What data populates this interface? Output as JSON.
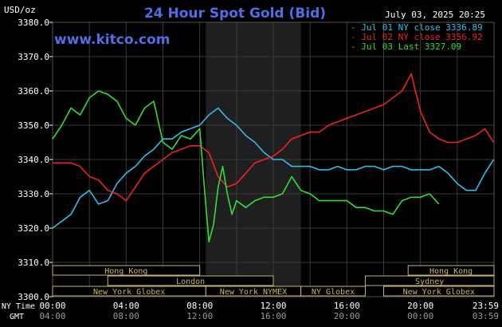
{
  "chart_data": {
    "type": "line",
    "title": "24 Hour Spot Gold (Bid)",
    "brand": "www.kitco.com",
    "date_label": "July 03, 2025 20:25",
    "ylabel": "USD/oz",
    "ylim": [
      3300,
      3380
    ],
    "yticks": [
      3300,
      3310,
      3320,
      3330,
      3340,
      3350,
      3360,
      3370,
      3380
    ],
    "ytick_labels": [
      "3300.0",
      "3310.0",
      "3320.0",
      "3330.0",
      "3340.0",
      "3350.0",
      "3360.0",
      "3370.0",
      "3380.0"
    ],
    "x_axis_caption_top": "NY Time",
    "x_axis_caption_bottom": "GMT",
    "xticks_ny": [
      "00:00",
      "04:00",
      "08:00",
      "12:00",
      "16:00",
      "20:00",
      "23:59"
    ],
    "xticks_gmt": [
      "04:00",
      "08:00",
      "12:00",
      "16:00",
      "20:00",
      "00:00",
      "03:59"
    ],
    "legend_position": "top-right",
    "grid": true,
    "series": [
      {
        "name": "Jul 01 NY close 3336.89",
        "color": "#33bbee",
        "x": [
          0,
          0.5,
          1,
          1.5,
          2,
          2.5,
          3,
          3.5,
          4,
          4.5,
          5,
          5.5,
          6,
          6.5,
          7,
          7.5,
          8,
          8.5,
          9,
          9.5,
          10,
          10.5,
          11,
          11.5,
          12,
          12.5,
          13,
          13.5,
          14,
          14.5,
          15,
          15.5,
          16,
          16.5,
          17,
          17.5,
          18,
          18.5,
          19,
          19.5,
          20,
          20.5,
          21,
          21.5,
          22,
          22.5,
          23,
          23.5,
          23.98
        ],
        "values": [
          3320,
          3322,
          3324,
          3329,
          3331,
          3327,
          3328,
          3333,
          3336,
          3338,
          3341,
          3343,
          3346,
          3346,
          3348,
          3349,
          3350,
          3353,
          3355,
          3352,
          3350,
          3347,
          3345,
          3342,
          3340,
          3340,
          3338,
          3338,
          3338,
          3337,
          3337,
          3338,
          3337,
          3337,
          3338,
          3338,
          3337,
          3338,
          3338,
          3337,
          3337,
          3337,
          3338,
          3336,
          3333,
          3331,
          3331,
          3336,
          3340
        ]
      },
      {
        "name": "Jul 02 NY close 3356.92",
        "color": "#ee2222",
        "x": [
          0,
          0.5,
          1,
          1.5,
          2,
          2.5,
          3,
          3.5,
          4,
          4.5,
          5,
          5.5,
          6,
          6.5,
          7,
          7.5,
          8,
          8.5,
          9,
          9.5,
          10,
          10.5,
          11,
          11.5,
          12,
          12.5,
          13,
          13.5,
          14,
          14.5,
          15,
          15.5,
          16,
          16.5,
          17,
          17.5,
          18,
          18.5,
          19,
          19.5,
          20,
          20.5,
          21,
          21.5,
          22,
          22.5,
          23,
          23.5,
          23.98
        ],
        "values": [
          3339,
          3339,
          3339,
          3338,
          3335,
          3334,
          3331,
          3330,
          3328,
          3332,
          3336,
          3338,
          3340,
          3342,
          3343,
          3344,
          3344,
          3342,
          3335,
          3332,
          3333,
          3336,
          3339,
          3340,
          3341,
          3343,
          3346,
          3347,
          3348,
          3348,
          3350,
          3351,
          3352,
          3353,
          3354,
          3355,
          3356,
          3358,
          3360,
          3365,
          3354,
          3348,
          3346,
          3345,
          3345,
          3346,
          3347,
          3349,
          3345
        ]
      },
      {
        "name": "Jul 03 Last 3327.09",
        "color": "#33dd33",
        "x": [
          0,
          0.5,
          1,
          1.5,
          2,
          2.5,
          3,
          3.5,
          4,
          4.5,
          5,
          5.5,
          6,
          6.5,
          7,
          7.5,
          8,
          8.25,
          8.5,
          8.75,
          9,
          9.25,
          9.5,
          9.75,
          10,
          10.5,
          11,
          11.5,
          12,
          12.5,
          13,
          13.5,
          14,
          14.5,
          15,
          15.5,
          16,
          16.5,
          17,
          17.5,
          18,
          18.5,
          19,
          19.5,
          20,
          20.5,
          21
        ],
        "values": [
          3346,
          3350,
          3355,
          3353,
          3358,
          3360,
          3359,
          3357,
          3352,
          3350,
          3355,
          3357,
          3345,
          3343,
          3347,
          3346,
          3349,
          3332,
          3316,
          3321,
          3332,
          3338,
          3330,
          3324,
          3328,
          3326,
          3328,
          3329,
          3329,
          3330,
          3335,
          3331,
          3330,
          3328,
          3328,
          3328,
          3328,
          3326,
          3326,
          3325,
          3325,
          3324,
          3328,
          3329,
          3329,
          3330,
          3327
        ]
      }
    ],
    "sessions": [
      {
        "name": "Hong Kong",
        "row": 0,
        "start": 0,
        "end": 8
      },
      {
        "name": "Hong Kong",
        "row": 0,
        "start": 19.33,
        "end": 24
      },
      {
        "name": "London",
        "row": 1,
        "start": 3,
        "end": 12
      },
      {
        "name": "Sydney",
        "row": 1,
        "start": 17,
        "end": 24
      },
      {
        "name": "New York Globex",
        "row": 2,
        "start": 0,
        "end": 8.33
      },
      {
        "name": "New York NYMEX",
        "row": 2,
        "start": 8.33,
        "end": 13.5
      },
      {
        "name": "NY Globex",
        "row": 2,
        "start": 13.5,
        "end": 17
      },
      {
        "name": "New York Globex",
        "row": 2,
        "start": 18,
        "end": 24
      }
    ],
    "shaded_period": [
      8.33,
      13.5
    ]
  }
}
